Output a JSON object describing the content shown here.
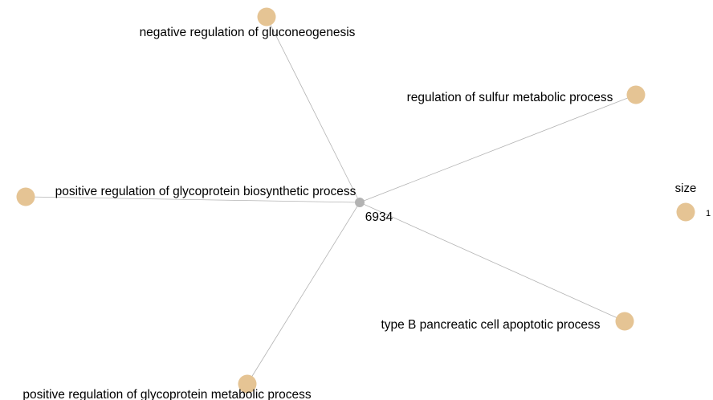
{
  "network": {
    "center": {
      "label": "6934",
      "color": "#b3b3b3"
    },
    "node_color": "#e5c494",
    "edge_color": "#b3b3b3",
    "terms": [
      {
        "label": "negative regulation of gluconeogenesis"
      },
      {
        "label": "regulation of sulfur metabolic process"
      },
      {
        "label": "positive regulation of glycoprotein biosynthetic process"
      },
      {
        "label": "type B pancreatic cell apoptotic process"
      },
      {
        "label": "positive regulation of glycoprotein metabolic process"
      }
    ]
  },
  "legend": {
    "title": "size",
    "value": "1"
  }
}
